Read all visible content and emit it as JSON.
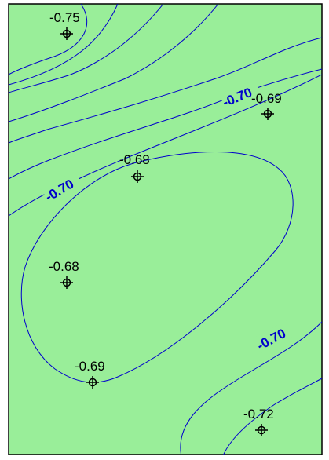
{
  "map": {
    "background_color": "#99ee99",
    "border_color": "#000000",
    "contour_color": "#0000cc",
    "marker_color": "#000000",
    "marker_icon": "crosshair-circle-icon"
  },
  "contour_labels": [
    {
      "id": "contour-label-upper-right",
      "text": "-0.70"
    },
    {
      "id": "contour-label-left",
      "text": "-0.70"
    },
    {
      "id": "contour-label-lower-right",
      "text": "-0.70"
    }
  ],
  "data_points": [
    {
      "id": "point-1",
      "value": "-0.75"
    },
    {
      "id": "point-2",
      "value": "-0.69"
    },
    {
      "id": "point-3",
      "value": "-0.68"
    },
    {
      "id": "point-4",
      "value": "-0.68"
    },
    {
      "id": "point-5",
      "value": "-0.69"
    },
    {
      "id": "point-6",
      "value": "-0.72"
    }
  ]
}
